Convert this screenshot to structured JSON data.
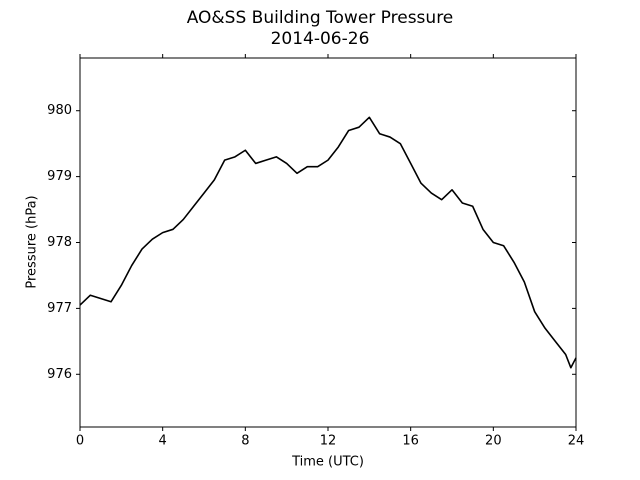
{
  "chart_data": {
    "type": "line",
    "title": "AO&SS Building Tower Pressure",
    "subtitle": "2014-06-26",
    "xlabel": "Time (UTC)",
    "ylabel": "Pressure (hPa)",
    "x": [
      0,
      0.5,
      1,
      1.5,
      2,
      2.5,
      3,
      3.5,
      4,
      4.5,
      5,
      5.5,
      6,
      6.5,
      7,
      7.5,
      8,
      8.5,
      9,
      9.5,
      10,
      10.5,
      11,
      11.5,
      12,
      12.5,
      13,
      13.5,
      14,
      14.5,
      15,
      15.5,
      16,
      16.5,
      17,
      17.5,
      18,
      18.5,
      19,
      19.5,
      20,
      20.5,
      21,
      21.5,
      22,
      22.5,
      23,
      23.5,
      23.75,
      24
    ],
    "series": [
      {
        "name": "Pressure",
        "color": "#000000",
        "values": [
          977.05,
          977.2,
          977.15,
          977.1,
          977.35,
          977.65,
          977.9,
          978.05,
          978.15,
          978.2,
          978.35,
          978.55,
          978.75,
          978.95,
          979.25,
          979.3,
          979.4,
          979.2,
          979.25,
          979.3,
          979.2,
          979.05,
          979.15,
          979.15,
          979.25,
          979.45,
          979.7,
          979.75,
          979.9,
          979.65,
          979.6,
          979.5,
          979.2,
          978.9,
          978.75,
          978.65,
          978.8,
          978.6,
          978.55,
          978.2,
          978.0,
          977.95,
          977.7,
          977.4,
          976.95,
          976.7,
          976.5,
          976.3,
          976.1,
          976.25
        ]
      }
    ],
    "xlim": [
      0,
      24
    ],
    "xticks": [
      0,
      4,
      8,
      12,
      16,
      20,
      24
    ],
    "ylim": [
      975.2,
      980.8
    ],
    "yticks": [
      976,
      977,
      978,
      979,
      980
    ],
    "grid": false
  }
}
